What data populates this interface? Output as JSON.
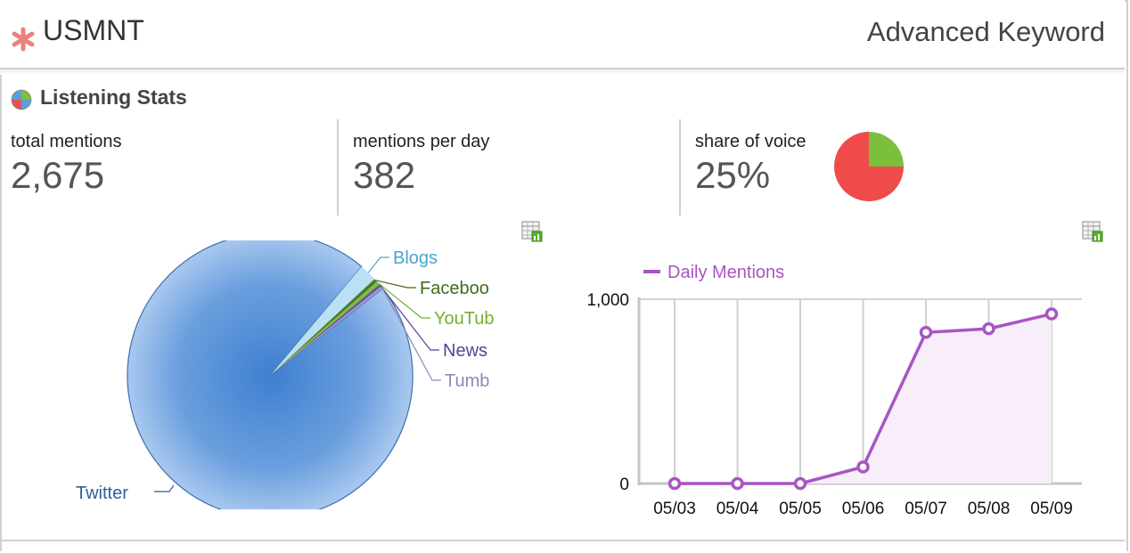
{
  "header": {
    "title": "USMNT",
    "right_title": "Advanced Keyword",
    "icon": "asterisk-icon"
  },
  "section": {
    "title": "Listening Stats",
    "icon": "globe-icon"
  },
  "stats": {
    "total_mentions": {
      "label": "total mentions",
      "value": "2,675"
    },
    "mentions_per_day": {
      "label": "mentions per day",
      "value": "382"
    },
    "share_of_voice": {
      "label": "share of voice",
      "value": "25%",
      "fraction": 0.25
    }
  },
  "colors": {
    "share_red": "#f04b4b",
    "share_green": "#7cbf3c",
    "pie_blue": "#4a86d0",
    "line_purple": "#a855c3",
    "area_fill": "#f7eefa"
  },
  "chart_data": [
    {
      "type": "pie",
      "slices": [
        {
          "label": "Twitter",
          "value": 96.6,
          "color": "#4a86d0",
          "labelColor": "#2b5f9e"
        },
        {
          "label": "Blogs",
          "value": 2.0,
          "color": "#b9e1f1",
          "labelColor": "#4ba3cc"
        },
        {
          "label": "Faceboo",
          "value": 0.4,
          "color": "#4b7a2a",
          "labelColor": "#3f6b1d"
        },
        {
          "label": "YouTub",
          "value": 0.4,
          "color": "#7cbf3c",
          "labelColor": "#6fb32c"
        },
        {
          "label": "News",
          "value": 0.3,
          "color": "#6b4fa3",
          "labelColor": "#5b3f97"
        },
        {
          "label": "Tumb",
          "value": 0.3,
          "color": "#9a9bc9",
          "labelColor": "#8a8ab8"
        }
      ]
    },
    {
      "type": "area",
      "series": [
        {
          "name": "Daily Mentions",
          "values": [
            0,
            0,
            0,
            90,
            820,
            840,
            920
          ]
        }
      ],
      "categories": [
        "05/03",
        "05/04",
        "05/05",
        "05/06",
        "05/07",
        "05/08",
        "05/09"
      ],
      "ylim": [
        0,
        1000
      ],
      "yticks": [
        "0",
        "1,000"
      ],
      "grid": true,
      "legend": "top-left"
    }
  ]
}
